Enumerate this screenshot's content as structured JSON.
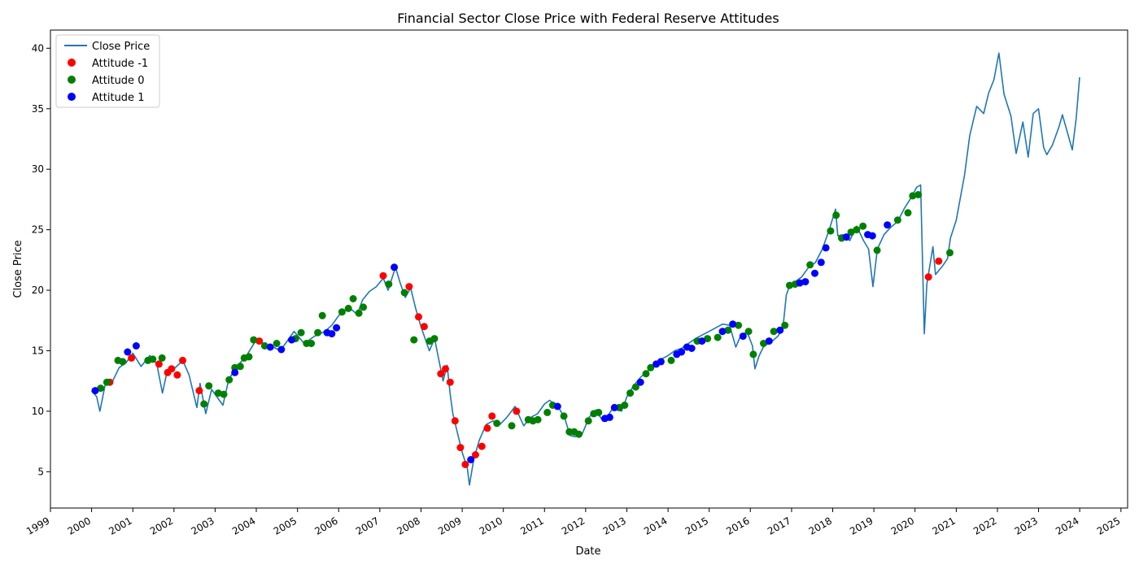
{
  "chart_data": {
    "type": "line",
    "title": "Financial Sector Close Price with Federal Reserve Attitudes",
    "xlabel": "Date",
    "ylabel": "Close Price",
    "xlim": [
      "1999-01-01",
      "2025-03-01"
    ],
    "ylim": [
      2.0,
      41.5
    ],
    "x_ticks": [
      "1999",
      "2000",
      "2001",
      "2002",
      "2003",
      "2004",
      "2005",
      "2006",
      "2007",
      "2008",
      "2009",
      "2010",
      "2011",
      "2012",
      "2013",
      "2014",
      "2015",
      "2016",
      "2017",
      "2018",
      "2019",
      "2020",
      "2021",
      "2022",
      "2023",
      "2024",
      "2025"
    ],
    "y_ticks": [
      5,
      10,
      15,
      20,
      25,
      30,
      35,
      40
    ],
    "grid": false,
    "legend_position": "top-left",
    "colors": {
      "line": "#1f77b4",
      "attitude_neg": "#ff0000",
      "attitude_zero": "#008000",
      "attitude_pos": "#0000ff"
    },
    "series": [
      {
        "name": "Close Price",
        "kind": "line",
        "x": [
          "2000-01-01",
          "2000-02-15",
          "2000-03-15",
          "2000-05-01",
          "2000-07-01",
          "2000-09-01",
          "2000-11-01",
          "2001-01-01",
          "2001-03-15",
          "2001-06-01",
          "2001-08-01",
          "2001-09-21",
          "2001-11-01",
          "2002-01-01",
          "2002-03-20",
          "2002-05-15",
          "2002-07-23",
          "2002-08-20",
          "2002-10-10",
          "2002-12-01",
          "2003-03-11",
          "2003-05-01",
          "2003-07-01",
          "2003-10-01",
          "2004-01-01",
          "2004-04-01",
          "2004-06-01",
          "2004-08-01",
          "2004-10-01",
          "2004-12-01",
          "2005-03-01",
          "2005-06-01",
          "2005-09-01",
          "2005-11-01",
          "2006-01-01",
          "2006-04-01",
          "2006-06-15",
          "2006-08-01",
          "2006-10-01",
          "2006-12-01",
          "2007-02-01",
          "2007-03-15",
          "2007-05-20",
          "2007-07-01",
          "2007-08-15",
          "2007-10-01",
          "2007-11-15",
          "2008-01-01",
          "2008-03-15",
          "2008-05-01",
          "2008-07-15",
          "2008-08-20",
          "2008-09-15",
          "2008-10-10",
          "2008-11-20",
          "2009-01-01",
          "2009-02-15",
          "2009-03-06",
          "2009-04-15",
          "2009-06-01",
          "2009-08-01",
          "2009-10-01",
          "2009-12-01",
          "2010-02-01",
          "2010-04-15",
          "2010-06-01",
          "2010-07-01",
          "2010-09-01",
          "2010-11-01",
          "2011-01-01",
          "2011-02-15",
          "2011-05-01",
          "2011-07-01",
          "2011-08-15",
          "2011-10-01",
          "2011-12-01",
          "2012-02-01",
          "2012-03-30",
          "2012-06-01",
          "2012-07-15",
          "2012-09-01",
          "2012-11-15",
          "2013-01-01",
          "2013-03-01",
          "2013-05-01",
          "2013-07-01",
          "2013-09-01",
          "2013-11-01",
          "2014-01-01",
          "2014-03-01",
          "2014-05-01",
          "2014-07-01",
          "2014-09-01",
          "2014-11-01",
          "2015-01-01",
          "2015-03-01",
          "2015-05-01",
          "2015-07-01",
          "2015-08-25",
          "2015-10-01",
          "2015-12-01",
          "2016-01-20",
          "2016-02-11",
          "2016-03-20",
          "2016-05-01",
          "2016-07-01",
          "2016-09-01",
          "2016-10-15",
          "2016-11-15",
          "2016-12-15",
          "2017-02-01",
          "2017-04-01",
          "2017-06-01",
          "2017-08-01",
          "2017-10-01",
          "2017-12-01",
          "2018-01-26",
          "2018-02-15",
          "2018-04-01",
          "2018-06-01",
          "2018-08-01",
          "2018-10-01",
          "2018-11-15",
          "2018-12-24",
          "2019-02-01",
          "2019-04-01",
          "2019-06-01",
          "2019-08-01",
          "2019-10-01",
          "2019-12-01",
          "2020-01-15",
          "2020-02-20",
          "2020-03-23",
          "2020-04-15",
          "2020-06-08",
          "2020-07-01",
          "2020-09-01",
          "2020-10-15",
          "2020-11-10",
          "2021-01-01",
          "2021-03-15",
          "2021-05-01",
          "2021-07-01",
          "2021-09-01",
          "2021-10-15",
          "2021-12-01",
          "2022-01-14",
          "2022-03-01",
          "2022-05-01",
          "2022-06-16",
          "2022-08-15",
          "2022-10-01",
          "2022-11-15",
          "2023-01-01",
          "2023-02-15",
          "2023-03-15",
          "2023-05-04",
          "2023-07-01",
          "2023-08-01",
          "2023-10-27",
          "2023-12-01",
          "2023-12-31"
        ],
        "values": [
          11.7,
          11.2,
          10.0,
          12.2,
          12.4,
          13.6,
          14.0,
          14.8,
          13.7,
          14.6,
          13.9,
          11.5,
          13.3,
          13.5,
          14.2,
          13.0,
          10.3,
          12.3,
          9.8,
          11.8,
          10.5,
          12.6,
          13.6,
          14.5,
          15.9,
          15.5,
          15.3,
          15.0,
          15.8,
          16.6,
          15.6,
          16.2,
          16.6,
          17.1,
          17.9,
          18.6,
          18.0,
          19.2,
          19.9,
          20.3,
          21.0,
          20.0,
          21.9,
          20.6,
          19.4,
          20.2,
          18.5,
          17.0,
          15.0,
          16.0,
          12.5,
          13.8,
          11.5,
          9.8,
          8.2,
          6.6,
          5.3,
          3.9,
          6.1,
          7.6,
          8.9,
          9.2,
          8.9,
          9.5,
          10.4,
          9.4,
          8.8,
          9.5,
          9.8,
          10.6,
          10.9,
          10.4,
          9.4,
          8.0,
          7.9,
          8.1,
          9.5,
          10.1,
          9.2,
          9.6,
          10.3,
          10.0,
          11.2,
          12.1,
          12.8,
          13.3,
          13.7,
          14.3,
          14.6,
          15.0,
          15.2,
          15.6,
          16.0,
          16.3,
          16.6,
          16.9,
          17.2,
          17.1,
          15.3,
          16.1,
          16.6,
          15.4,
          13.5,
          14.6,
          15.4,
          15.7,
          16.2,
          16.8,
          19.6,
          20.4,
          20.7,
          21.1,
          21.9,
          22.3,
          23.4,
          25.0,
          26.7,
          24.5,
          24.6,
          24.1,
          25.3,
          24.1,
          23.4,
          20.3,
          23.4,
          24.6,
          25.2,
          25.7,
          26.8,
          27.7,
          28.5,
          28.7,
          16.4,
          20.5,
          23.6,
          21.3,
          22.0,
          22.6,
          24.3,
          25.8,
          29.5,
          32.8,
          35.2,
          34.6,
          36.3,
          37.4,
          39.6,
          36.2,
          34.4,
          31.3,
          33.9,
          31.0,
          34.6,
          35.0,
          31.8,
          31.2,
          32.0,
          33.5,
          34.5,
          31.6,
          34.2,
          37.6
        ]
      },
      {
        "name": "Attitude -1",
        "kind": "scatter",
        "x": [
          "2000-06-10",
          "2000-12-20",
          "2001-08-21",
          "2001-11-06",
          "2001-12-11",
          "2002-01-30",
          "2002-03-19",
          "2002-08-13",
          "2004-01-28",
          "2007-01-31",
          "2007-09-18",
          "2007-12-11",
          "2008-01-30",
          "2008-06-25",
          "2008-08-05",
          "2008-09-16",
          "2008-10-29",
          "2008-12-16",
          "2009-01-28",
          "2009-04-29",
          "2009-06-24",
          "2009-08-12",
          "2009-09-23",
          "2010-04-28",
          "2020-04-29",
          "2020-07-29"
        ],
        "values": [
          12.4,
          14.4,
          13.9,
          13.2,
          13.5,
          13.0,
          14.2,
          11.7,
          15.8,
          21.2,
          20.3,
          17.8,
          17.0,
          13.1,
          13.5,
          12.4,
          9.2,
          7.0,
          5.6,
          6.4,
          7.1,
          8.6,
          9.6,
          10.0,
          21.1,
          22.4
        ]
      },
      {
        "name": "Attitude 0",
        "kind": "scatter",
        "x": [
          "2000-03-21",
          "2000-05-16",
          "2000-08-22",
          "2000-10-03",
          "2001-05-15",
          "2001-06-27",
          "2001-09-17",
          "2002-09-24",
          "2002-11-06",
          "2003-01-29",
          "2003-03-18",
          "2003-05-06",
          "2003-06-25",
          "2003-08-12",
          "2003-09-16",
          "2003-10-28",
          "2003-12-09",
          "2004-03-16",
          "2004-06-30",
          "2004-12-14",
          "2005-02-02",
          "2005-03-22",
          "2005-05-03",
          "2005-06-30",
          "2005-08-09",
          "2006-01-31",
          "2006-03-28",
          "2006-05-10",
          "2006-06-29",
          "2006-08-08",
          "2007-03-21",
          "2007-08-07",
          "2007-10-31",
          "2008-03-18",
          "2008-04-30",
          "2009-11-04",
          "2010-03-16",
          "2010-08-10",
          "2010-09-21",
          "2010-11-03",
          "2011-01-26",
          "2011-03-15",
          "2011-06-22",
          "2011-08-09",
          "2011-09-21",
          "2011-11-02",
          "2012-01-25",
          "2012-03-13",
          "2012-04-25",
          "2012-10-24",
          "2012-12-12",
          "2013-01-30",
          "2013-03-20",
          "2013-06-19",
          "2013-07-31",
          "2014-01-29",
          "2014-09-17",
          "2014-12-17",
          "2015-03-18",
          "2015-06-17",
          "2015-09-17",
          "2015-12-16",
          "2016-01-27",
          "2016-04-27",
          "2016-07-27",
          "2016-11-02",
          "2016-12-14",
          "2017-02-01",
          "2017-06-14",
          "2017-12-13",
          "2018-01-31",
          "2018-03-21",
          "2018-06-13",
          "2018-08-01",
          "2018-09-26",
          "2019-01-30",
          "2019-07-31",
          "2019-10-30",
          "2019-12-11",
          "2020-01-29",
          "2020-11-05"
        ],
        "values": [
          11.9,
          12.4,
          14.2,
          14.1,
          14.2,
          14.3,
          14.4,
          10.6,
          12.1,
          11.5,
          11.4,
          12.6,
          13.6,
          13.7,
          14.4,
          14.5,
          15.9,
          15.4,
          15.6,
          16.0,
          16.5,
          15.6,
          15.6,
          16.5,
          17.9,
          18.2,
          18.5,
          19.3,
          18.1,
          18.6,
          20.5,
          19.8,
          15.9,
          15.8,
          16.0,
          9.0,
          8.8,
          9.3,
          9.2,
          9.3,
          9.9,
          10.5,
          9.6,
          8.3,
          8.3,
          8.1,
          9.2,
          9.8,
          9.9,
          10.3,
          10.5,
          11.5,
          12.0,
          13.1,
          13.6,
          14.2,
          15.8,
          16.0,
          16.1,
          16.7,
          17.1,
          16.6,
          14.7,
          15.6,
          16.6,
          17.1,
          20.4,
          20.5,
          22.1,
          24.9,
          26.2,
          24.3,
          24.8,
          25.0,
          25.3,
          23.3,
          25.8,
          26.4,
          27.8,
          27.9,
          23.1
        ]
      },
      {
        "name": "Attitude 1",
        "kind": "scatter",
        "x": [
          "2000-02-02",
          "2000-11-15",
          "2001-01-31",
          "2003-06-25",
          "2004-05-04",
          "2004-08-10",
          "2004-11-10",
          "2005-09-20",
          "2005-11-01",
          "2005-12-13",
          "2007-05-09",
          "2009-03-18",
          "2011-04-27",
          "2012-06-20",
          "2012-08-01",
          "2012-09-13",
          "2013-05-01",
          "2013-09-18",
          "2013-10-30",
          "2014-03-19",
          "2014-04-30",
          "2014-06-18",
          "2014-07-30",
          "2014-10-29",
          "2015-04-29",
          "2015-07-29",
          "2015-10-28",
          "2016-06-15",
          "2016-09-21",
          "2017-03-15",
          "2017-05-03",
          "2017-07-26",
          "2017-09-20",
          "2017-11-01",
          "2018-05-02",
          "2018-11-08",
          "2018-12-19",
          "2019-05-01"
        ],
        "values": [
          11.7,
          14.9,
          15.4,
          13.2,
          15.3,
          15.1,
          15.9,
          16.5,
          16.4,
          16.9,
          21.9,
          6.0,
          10.4,
          9.4,
          9.5,
          10.3,
          12.4,
          13.9,
          14.1,
          14.7,
          14.9,
          15.3,
          15.2,
          15.8,
          16.6,
          17.2,
          16.2,
          15.8,
          16.7,
          20.6,
          20.7,
          21.4,
          22.3,
          23.5,
          24.4,
          24.6,
          24.5,
          25.4
        ]
      }
    ]
  }
}
